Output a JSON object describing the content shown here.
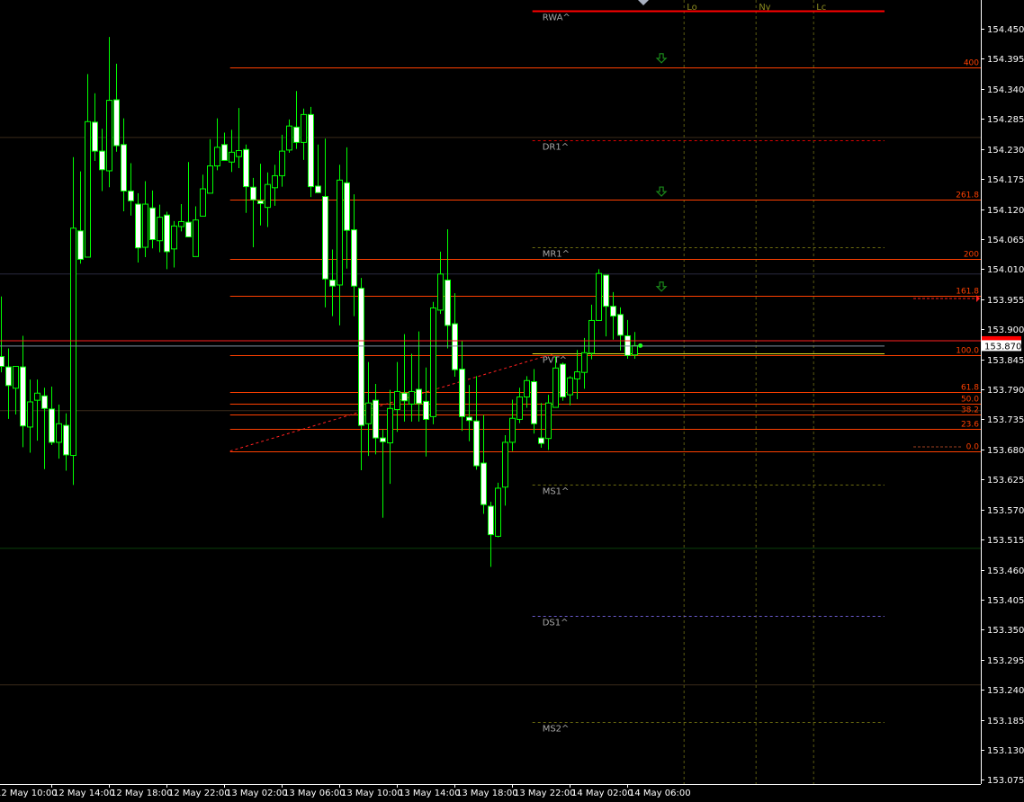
{
  "chart_data": {
    "type": "candlestick",
    "timeframe_minutes": 30,
    "first_bar_time": "12 May 10:30",
    "up_color": "#00ff00",
    "bull_body": "hollow",
    "bear_body": "#ffffff",
    "background": "#000000",
    "ylim": [
      153.075,
      154.475
    ],
    "y_ticks": [
      "154.450",
      "154.395",
      "154.340",
      "154.285",
      "154.230",
      "154.175",
      "154.120",
      "154.065",
      "154.010",
      "153.955",
      "153.900",
      "153.845",
      "153.790",
      "153.735",
      "153.680",
      "153.625",
      "153.570",
      "153.515",
      "153.460",
      "153.405",
      "153.350",
      "153.295",
      "153.240",
      "153.185",
      "153.130",
      "153.075"
    ],
    "x_ticks": [
      "12 May 10:00",
      "12 May 14:00",
      "12 May 18:00",
      "12 May 22:00",
      "13 May 02:00",
      "13 May 06:00",
      "13 May 10:00",
      "13 May 14:00",
      "13 May 18:00",
      "13 May 22:00",
      "14 May 02:00",
      "14 May 06:00"
    ],
    "ohlc": [
      [
        153.85,
        153.96,
        153.821,
        153.832
      ],
      [
        153.831,
        153.865,
        153.736,
        153.797
      ],
      [
        153.792,
        153.832,
        153.744,
        153.832
      ],
      [
        153.831,
        153.888,
        153.684,
        153.723
      ],
      [
        153.721,
        153.808,
        153.674,
        153.767
      ],
      [
        153.77,
        153.808,
        153.696,
        153.783
      ],
      [
        153.778,
        153.793,
        153.644,
        153.755
      ],
      [
        153.754,
        153.795,
        153.688,
        153.693
      ],
      [
        153.693,
        153.762,
        153.663,
        153.727
      ],
      [
        153.724,
        153.746,
        153.641,
        153.67
      ],
      [
        153.669,
        154.215,
        153.615,
        154.085
      ],
      [
        154.08,
        154.189,
        154.02,
        154.028
      ],
      [
        154.032,
        154.367,
        154.032,
        154.28
      ],
      [
        154.279,
        154.332,
        154.208,
        154.226
      ],
      [
        154.226,
        154.267,
        154.153,
        154.192
      ],
      [
        154.19,
        154.435,
        154.16,
        154.319
      ],
      [
        154.32,
        154.386,
        154.225,
        154.236
      ],
      [
        154.238,
        154.286,
        154.116,
        154.153
      ],
      [
        154.153,
        154.204,
        154.108,
        154.135
      ],
      [
        154.129,
        154.149,
        154.022,
        154.049
      ],
      [
        154.05,
        154.171,
        154.032,
        154.129
      ],
      [
        154.122,
        154.154,
        154.048,
        154.064
      ],
      [
        154.062,
        154.128,
        154.041,
        154.105
      ],
      [
        154.109,
        154.115,
        154.01,
        154.042
      ],
      [
        154.047,
        154.098,
        154.013,
        154.089
      ],
      [
        154.088,
        154.129,
        154.079,
        154.097
      ],
      [
        154.096,
        154.206,
        154.069,
        154.069
      ],
      [
        154.033,
        154.125,
        154.033,
        154.1
      ],
      [
        154.107,
        154.183,
        154.107,
        154.157
      ],
      [
        154.149,
        154.248,
        154.149,
        154.199
      ],
      [
        154.199,
        154.286,
        154.191,
        154.233
      ],
      [
        154.238,
        154.26,
        154.209,
        154.209
      ],
      [
        154.206,
        154.265,
        154.188,
        154.224
      ],
      [
        154.216,
        154.305,
        154.195,
        154.227
      ],
      [
        154.229,
        154.238,
        154.113,
        154.161
      ],
      [
        154.16,
        154.177,
        154.05,
        154.137
      ],
      [
        154.135,
        154.203,
        154.09,
        154.13
      ],
      [
        154.123,
        154.187,
        154.087,
        154.165
      ],
      [
        154.159,
        154.201,
        154.126,
        154.181
      ],
      [
        154.181,
        154.256,
        154.161,
        154.226
      ],
      [
        154.228,
        154.284,
        154.223,
        154.272
      ],
      [
        154.27,
        154.336,
        154.23,
        154.242
      ],
      [
        154.242,
        154.304,
        154.21,
        154.293
      ],
      [
        154.293,
        154.307,
        154.142,
        154.161
      ],
      [
        154.162,
        154.238,
        154.15,
        154.15
      ],
      [
        154.143,
        154.249,
        153.94,
        153.992
      ],
      [
        153.99,
        154.046,
        153.924,
        153.979
      ],
      [
        153.981,
        154.201,
        153.907,
        154.173
      ],
      [
        154.168,
        154.233,
        154.011,
        154.081
      ],
      [
        154.082,
        154.147,
        153.924,
        153.979
      ],
      [
        153.975,
        153.994,
        153.642,
        153.724
      ],
      [
        153.727,
        153.84,
        153.668,
        153.765
      ],
      [
        153.77,
        153.8,
        153.671,
        153.701
      ],
      [
        153.701,
        153.717,
        153.555,
        153.694
      ],
      [
        153.692,
        153.789,
        153.617,
        153.755
      ],
      [
        153.753,
        153.84,
        153.712,
        153.786
      ],
      [
        153.783,
        153.891,
        153.731,
        153.769
      ],
      [
        153.763,
        153.855,
        153.731,
        153.786
      ],
      [
        153.79,
        153.896,
        153.731,
        153.764
      ],
      [
        153.768,
        153.83,
        153.667,
        153.735
      ],
      [
        153.74,
        153.95,
        153.726,
        153.939
      ],
      [
        153.935,
        154.042,
        153.928,
        154.001
      ],
      [
        153.99,
        154.083,
        153.865,
        153.907
      ],
      [
        153.91,
        153.966,
        153.813,
        153.826
      ],
      [
        153.827,
        153.879,
        153.714,
        153.74
      ],
      [
        153.739,
        153.798,
        153.695,
        153.733
      ],
      [
        153.732,
        153.814,
        153.643,
        153.65
      ],
      [
        153.655,
        153.743,
        153.562,
        153.579
      ],
      [
        153.576,
        153.584,
        153.465,
        153.524
      ],
      [
        153.521,
        153.619,
        153.519,
        153.609
      ],
      [
        153.611,
        153.706,
        153.577,
        153.693
      ],
      [
        153.693,
        153.771,
        153.677,
        153.737
      ],
      [
        153.735,
        153.793,
        153.728,
        153.776
      ],
      [
        153.776,
        153.814,
        153.756,
        153.806
      ],
      [
        153.804,
        153.827,
        153.709,
        153.727
      ],
      [
        153.701,
        153.765,
        153.683,
        153.691
      ],
      [
        153.7,
        153.78,
        153.679,
        153.765
      ],
      [
        153.757,
        153.85,
        153.757,
        153.829
      ],
      [
        153.836,
        153.839,
        153.769,
        153.776
      ],
      [
        153.78,
        153.814,
        153.761,
        153.811
      ],
      [
        153.809,
        153.862,
        153.772,
        153.822
      ],
      [
        153.821,
        153.884,
        153.791,
        153.857
      ],
      [
        153.856,
        153.945,
        153.845,
        153.916
      ],
      [
        153.916,
        154.01,
        153.916,
        154.002
      ],
      [
        153.999,
        153.999,
        153.887,
        153.942
      ],
      [
        153.942,
        153.968,
        153.881,
        153.924
      ],
      [
        153.927,
        153.94,
        153.861,
        153.889
      ],
      [
        153.888,
        153.917,
        153.846,
        153.852
      ],
      [
        153.853,
        153.895,
        153.846,
        153.87
      ]
    ],
    "current_price": "153.870",
    "ask_line_price": 153.879,
    "bid_line_price": 153.87,
    "fibonacci": {
      "color": "#ff4000",
      "levels": [
        {
          "label": "400",
          "price": 154.379
        },
        {
          "label": "261.8",
          "price": 154.137
        },
        {
          "label": "200",
          "price": 154.029
        },
        {
          "label": "161.8",
          "price": 153.961
        },
        {
          "label": "100.0",
          "price": 153.853
        },
        {
          "label": "61.8",
          "price": 153.785
        },
        {
          "label": "50.0",
          "price": 153.764
        },
        {
          "label": "38.2",
          "price": 153.744
        },
        {
          "label": "23.6",
          "price": 153.718
        },
        {
          "label": "0.0",
          "price": 153.677
        }
      ]
    },
    "pivots": [
      {
        "label": "RWA^",
        "price": 154.483,
        "color": "#ff0000"
      },
      {
        "label": "DR1^",
        "price": 154.246,
        "color": "#dd0000"
      },
      {
        "label": "MR1^",
        "price": 154.05,
        "color": "#6b6b10"
      },
      {
        "label": "PVT^",
        "price": 153.856,
        "color": "#e0e020"
      },
      {
        "label": "MS1^",
        "price": 153.616,
        "color": "#6b6b10"
      },
      {
        "label": "DS1^",
        "price": 153.375,
        "color": "#6a5acd"
      },
      {
        "label": "MS2^",
        "price": 153.181,
        "color": "#6b6b10"
      }
    ],
    "background_levels": [
      {
        "price": 154.251,
        "color": "#3a2a1a"
      },
      {
        "price": 154.001,
        "color": "#2a2a40"
      },
      {
        "price": 153.751,
        "color": "#3a2a1a"
      },
      {
        "price": 153.499,
        "color": "#0a400a"
      },
      {
        "price": 153.249,
        "color": "#3a2a1a"
      }
    ],
    "sessions": [
      {
        "label": "Lo",
        "time": "14 May 10:00"
      },
      {
        "label": "Ny",
        "time": "14 May 15:00"
      },
      {
        "label": "Lc",
        "time": "14 May 19:00"
      }
    ],
    "signal_arrows": [
      {
        "icon": "down-arrow",
        "price": 154.396
      },
      {
        "icon": "down-arrow",
        "price": 154.152
      },
      {
        "icon": "down-arrow",
        "price": 153.978
      }
    ]
  }
}
